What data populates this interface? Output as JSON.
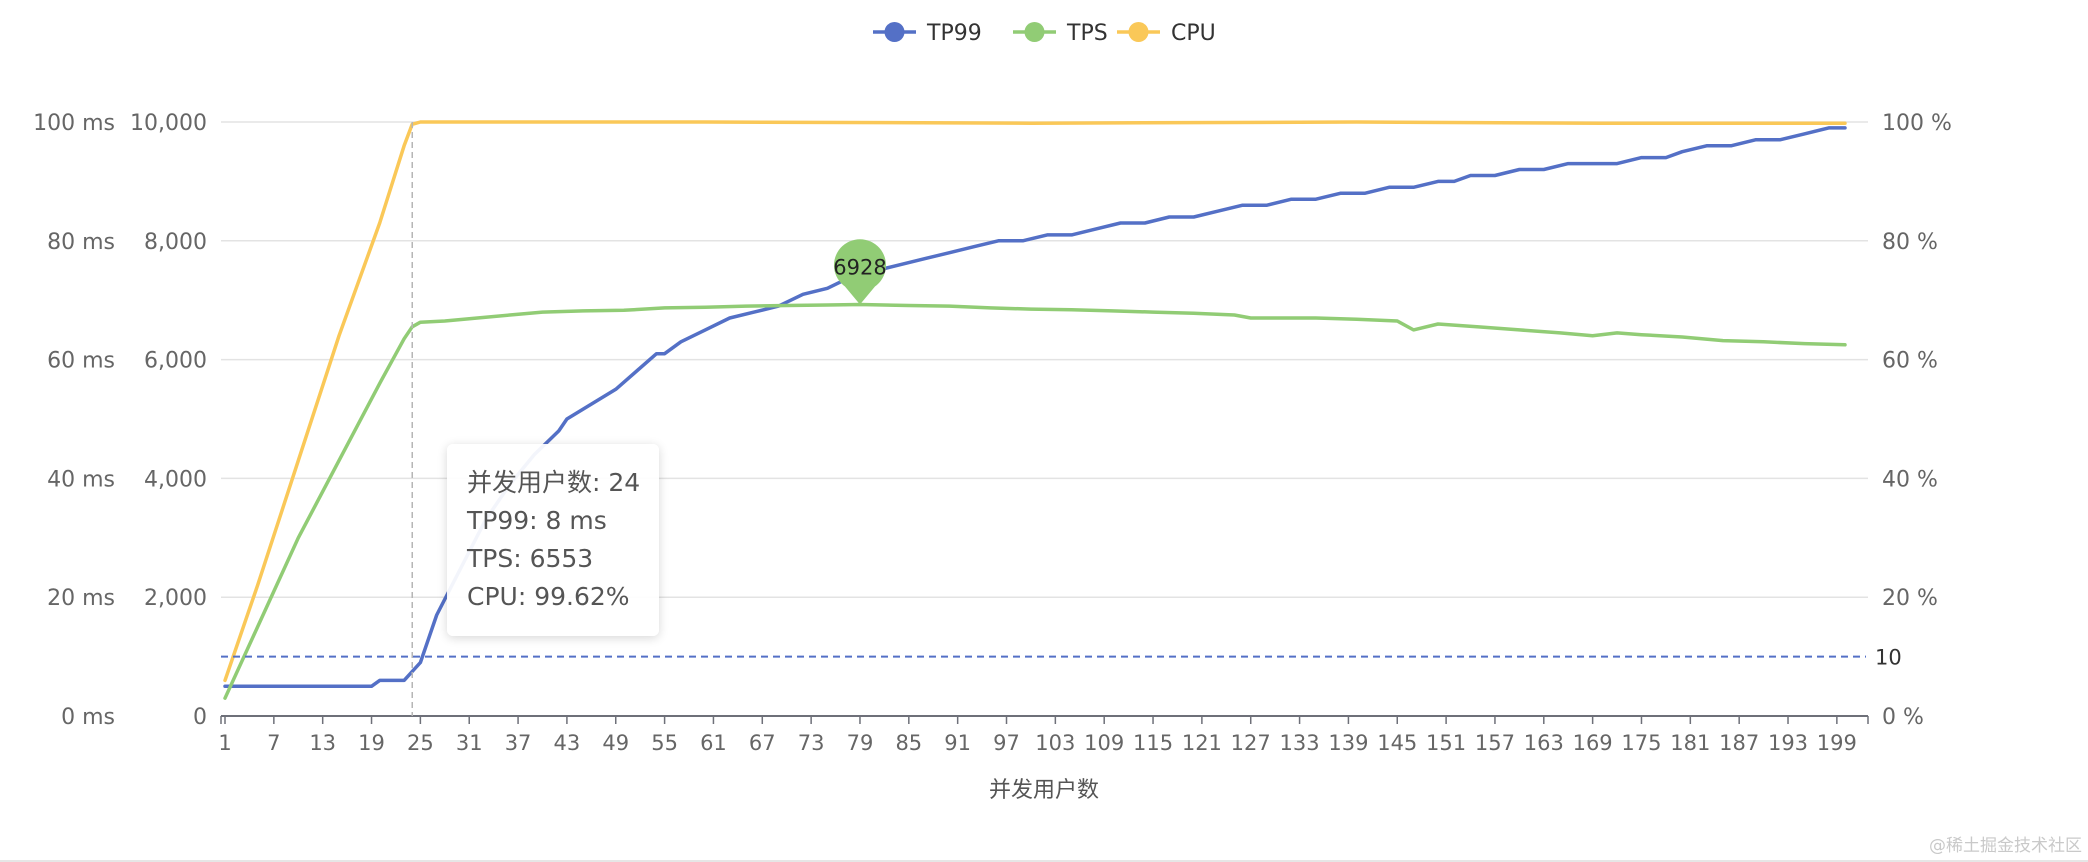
{
  "legend": [
    {
      "name": "TP99",
      "color": "#5470c6"
    },
    {
      "name": "TPS",
      "color": "#91cc75"
    },
    {
      "name": "CPU",
      "color": "#fac858"
    }
  ],
  "tooltip": {
    "line1": "并发用户数: 24",
    "line2": "TP99: 8 ms",
    "line3": "TPS: 6553",
    "line4": "CPU: 99.62%"
  },
  "watermark": "@稀土掘金技术社区",
  "chart_data": {
    "type": "line",
    "xlabel": "并发用户数",
    "x_range": [
      1,
      200
    ],
    "x_tick_labels": [
      "1",
      "7",
      "13",
      "19",
      "25",
      "31",
      "37",
      "43",
      "49",
      "55",
      "61",
      "67",
      "73",
      "79",
      "85",
      "91",
      "97",
      "103",
      "109",
      "115",
      "121",
      "127",
      "133",
      "139",
      "145",
      "151",
      "157",
      "163",
      "169",
      "175",
      "181",
      "187",
      "193",
      "199"
    ],
    "y_axes": {
      "left_ms": {
        "min": 0,
        "max": 100,
        "ticks": [
          "0 ms",
          "20 ms",
          "40 ms",
          "60 ms",
          "80 ms",
          "100 ms"
        ]
      },
      "left_tps": {
        "min": 0,
        "max": 10000,
        "ticks": [
          "0",
          "2,000",
          "4,000",
          "6,000",
          "8,000",
          "10,000"
        ]
      },
      "right_pct": {
        "min": 0,
        "max": 100,
        "ticks": [
          "0 %",
          "20 %",
          "40 %",
          "60 %",
          "80 %",
          "100 %"
        ]
      }
    },
    "grid": true,
    "legend_position": "top-center",
    "series": [
      {
        "name": "TP99",
        "axis": "left_ms",
        "color": "#5470c6",
        "points": [
          [
            1,
            5
          ],
          [
            19,
            5
          ],
          [
            20,
            6
          ],
          [
            23,
            6
          ],
          [
            25,
            9
          ],
          [
            27,
            17
          ],
          [
            30,
            25
          ],
          [
            33,
            33
          ],
          [
            36,
            39
          ],
          [
            39,
            44
          ],
          [
            42,
            48
          ],
          [
            43,
            50
          ],
          [
            49,
            55
          ],
          [
            54,
            61
          ],
          [
            55,
            61
          ],
          [
            57,
            63
          ],
          [
            60,
            65
          ],
          [
            63,
            67
          ],
          [
            66,
            68
          ],
          [
            69,
            69
          ],
          [
            72,
            71
          ],
          [
            75,
            72
          ],
          [
            78,
            74
          ],
          [
            81,
            75
          ],
          [
            84,
            76
          ],
          [
            87,
            77
          ],
          [
            90,
            78
          ],
          [
            93,
            79
          ],
          [
            96,
            80
          ],
          [
            99,
            80
          ],
          [
            102,
            81
          ],
          [
            105,
            81
          ],
          [
            108,
            82
          ],
          [
            111,
            83
          ],
          [
            114,
            83
          ],
          [
            117,
            84
          ],
          [
            120,
            84
          ],
          [
            123,
            85
          ],
          [
            126,
            86
          ],
          [
            129,
            86
          ],
          [
            132,
            87
          ],
          [
            135,
            87
          ],
          [
            138,
            88
          ],
          [
            141,
            88
          ],
          [
            144,
            89
          ],
          [
            147,
            89
          ],
          [
            150,
            90
          ],
          [
            152,
            90
          ],
          [
            154,
            91
          ],
          [
            157,
            91
          ],
          [
            160,
            92
          ],
          [
            163,
            92
          ],
          [
            166,
            93
          ],
          [
            169,
            93
          ],
          [
            172,
            93
          ],
          [
            175,
            94
          ],
          [
            178,
            94
          ],
          [
            180,
            95
          ],
          [
            183,
            96
          ],
          [
            186,
            96
          ],
          [
            189,
            97
          ],
          [
            192,
            97
          ],
          [
            195,
            98
          ],
          [
            198,
            99
          ],
          [
            200,
            99
          ]
        ]
      },
      {
        "name": "TPS",
        "axis": "left_tps",
        "color": "#91cc75",
        "points": [
          [
            1,
            300
          ],
          [
            5,
            1500
          ],
          [
            10,
            3000
          ],
          [
            15,
            4300
          ],
          [
            20,
            5600
          ],
          [
            23,
            6350
          ],
          [
            24,
            6553
          ],
          [
            25,
            6630
          ],
          [
            28,
            6650
          ],
          [
            32,
            6700
          ],
          [
            36,
            6750
          ],
          [
            40,
            6800
          ],
          [
            45,
            6820
          ],
          [
            50,
            6830
          ],
          [
            55,
            6870
          ],
          [
            60,
            6880
          ],
          [
            65,
            6900
          ],
          [
            70,
            6910
          ],
          [
            75,
            6920
          ],
          [
            79,
            6928
          ],
          [
            85,
            6910
          ],
          [
            90,
            6900
          ],
          [
            95,
            6870
          ],
          [
            100,
            6850
          ],
          [
            105,
            6840
          ],
          [
            110,
            6820
          ],
          [
            115,
            6800
          ],
          [
            120,
            6780
          ],
          [
            125,
            6750
          ],
          [
            127,
            6700
          ],
          [
            130,
            6700
          ],
          [
            135,
            6700
          ],
          [
            140,
            6680
          ],
          [
            145,
            6650
          ],
          [
            147,
            6500
          ],
          [
            150,
            6600
          ],
          [
            155,
            6550
          ],
          [
            160,
            6500
          ],
          [
            165,
            6450
          ],
          [
            169,
            6400
          ],
          [
            172,
            6450
          ],
          [
            175,
            6420
          ],
          [
            180,
            6380
          ],
          [
            185,
            6320
          ],
          [
            190,
            6300
          ],
          [
            195,
            6270
          ],
          [
            200,
            6250
          ]
        ]
      },
      {
        "name": "CPU",
        "axis": "right_pct",
        "color": "#fac858",
        "points": [
          [
            1,
            6
          ],
          [
            5,
            22
          ],
          [
            10,
            43
          ],
          [
            15,
            64
          ],
          [
            20,
            83
          ],
          [
            23,
            96
          ],
          [
            24,
            99.62
          ],
          [
            25,
            100
          ],
          [
            60,
            100
          ],
          [
            100,
            99.8
          ],
          [
            140,
            100
          ],
          [
            170,
            99.8
          ],
          [
            200,
            99.8
          ]
        ]
      }
    ],
    "mark_point": {
      "series": "TPS",
      "x": 79,
      "value": 6928,
      "label": "6928"
    },
    "mark_line": {
      "series": "TP99",
      "value": 10,
      "label": "10"
    },
    "crosshair_x": 24
  }
}
